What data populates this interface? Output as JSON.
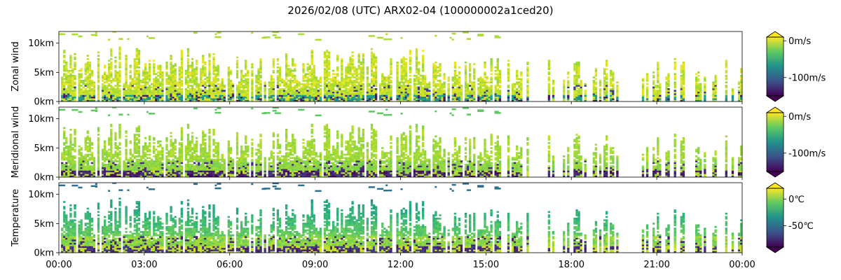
{
  "chart_data": {
    "type": "heatmap",
    "title": "2026/02/08 (UTC) ARX02-04 (100000002a1ced20)",
    "x": {
      "range_hours": [
        0,
        24
      ],
      "tick_hours": [
        0,
        3,
        6,
        9,
        12,
        15,
        18,
        21,
        24
      ],
      "tick_labels": [
        "00:00",
        "03:00",
        "06:00",
        "09:00",
        "12:00",
        "15:00",
        "18:00",
        "21:00",
        "00:00"
      ]
    },
    "colormap": "viridis",
    "panels": [
      {
        "ylabel": "Zonal wind",
        "ylim_km": [
          0,
          12
        ],
        "y_ticks_km": [
          0,
          5,
          10
        ],
        "y_tick_labels": [
          "0km",
          "5km",
          "10km"
        ],
        "colorbar": {
          "range": [
            -150,
            10
          ],
          "ticks": [
            0,
            -100
          ],
          "tick_labels": [
            "0m/s",
            "-100m/s"
          ],
          "extend": "both"
        }
      },
      {
        "ylabel": "Meridional wind",
        "ylim_km": [
          0,
          12
        ],
        "y_ticks_km": [
          0,
          5,
          10
        ],
        "y_tick_labels": [
          "0km",
          "5km",
          "10km"
        ],
        "colorbar": {
          "range": [
            -150,
            10
          ],
          "ticks": [
            0,
            -100
          ],
          "tick_labels": [
            "0m/s",
            "-100m/s"
          ],
          "extend": "both"
        }
      },
      {
        "ylabel": "Temperature",
        "ylim_km": [
          0,
          12
        ],
        "y_ticks_km": [
          0,
          5,
          10
        ],
        "y_tick_labels": [
          "0km",
          "5km",
          "10km"
        ],
        "colorbar": {
          "range": [
            -90,
            20
          ],
          "ticks": [
            0,
            -50
          ],
          "tick_labels": [
            "0℃",
            "-50℃"
          ],
          "extend": "both"
        }
      }
    ]
  }
}
